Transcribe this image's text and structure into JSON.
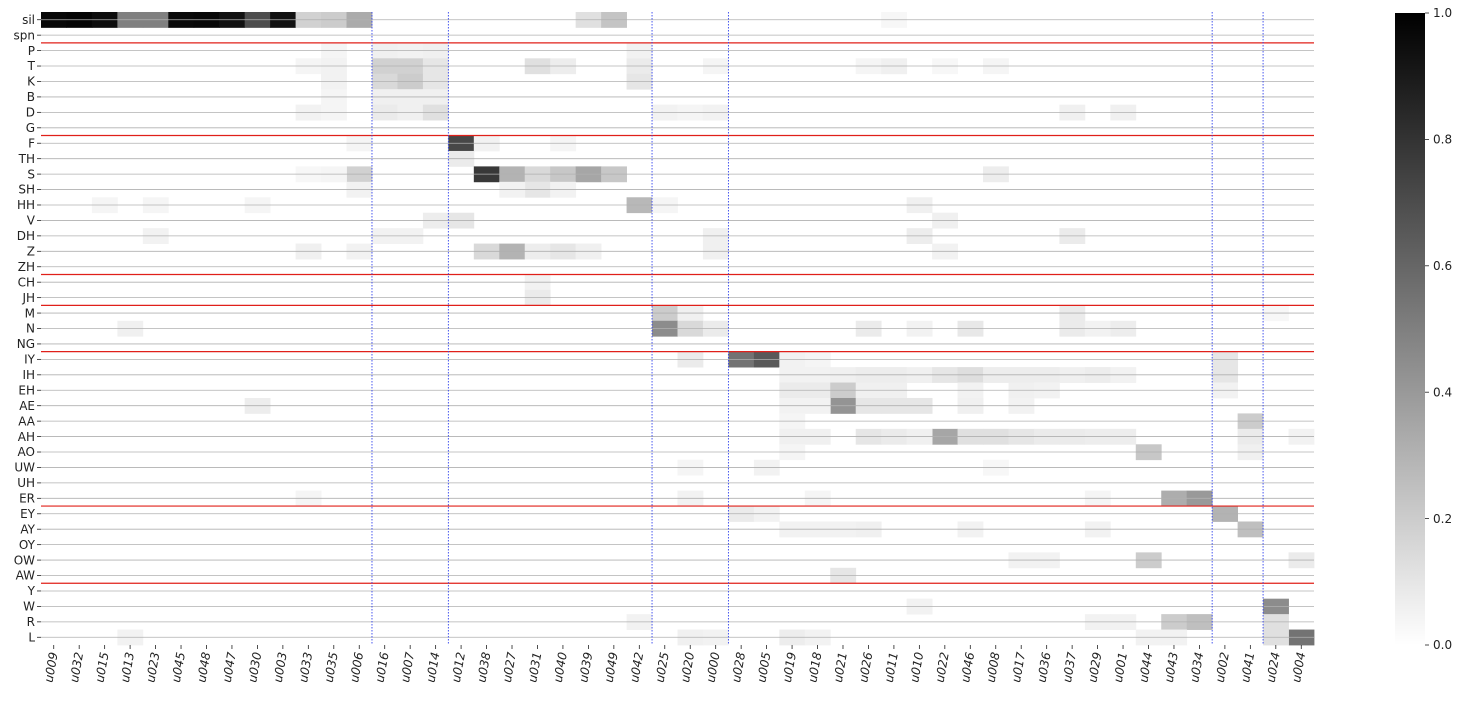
{
  "chart_data": {
    "type": "heatmap",
    "title": "",
    "xlabel": "",
    "ylabel": "",
    "color_scale": {
      "min": 0.0,
      "max": 1.0,
      "low_color": "#ffffff",
      "high_color": "#000000"
    },
    "colorbar_ticks": [
      "0.0",
      "0.2",
      "0.4",
      "0.6",
      "0.8",
      "1.0"
    ],
    "colorbar_tick_values": [
      0.0,
      0.2,
      0.4,
      0.6,
      0.8,
      1.0
    ],
    "rows": [
      "sil",
      "spn",
      "P",
      "T",
      "K",
      "B",
      "D",
      "G",
      "F",
      "TH",
      "S",
      "SH",
      "HH",
      "V",
      "DH",
      "Z",
      "ZH",
      "CH",
      "JH",
      "M",
      "N",
      "NG",
      "IY",
      "IH",
      "EH",
      "AE",
      "AA",
      "AH",
      "AO",
      "UW",
      "UH",
      "ER",
      "EY",
      "AY",
      "OY",
      "OW",
      "AW",
      "Y",
      "W",
      "R",
      "L"
    ],
    "columns": [
      "u009",
      "u032",
      "u015",
      "u013",
      "u023",
      "u045",
      "u048",
      "u047",
      "u030",
      "u003",
      "u033",
      "u035",
      "u006",
      "u016",
      "u007",
      "u014",
      "u012",
      "u038",
      "u027",
      "u031",
      "u040",
      "u039",
      "u049",
      "u042",
      "u025",
      "u020",
      "u000",
      "u028",
      "u005",
      "u019",
      "u018",
      "u021",
      "u026",
      "u011",
      "u010",
      "u022",
      "u046",
      "u008",
      "u017",
      "u036",
      "u037",
      "u029",
      "u001",
      "u044",
      "u043",
      "u034",
      "u002",
      "u041",
      "u024",
      "u004"
    ],
    "row_group_separators_after": [
      "spn",
      "G",
      "ZH",
      "JH",
      "NG",
      "ER",
      "AW"
    ],
    "column_group_separators_after": [
      "u006",
      "u014",
      "u042",
      "u000",
      "u034",
      "u041"
    ],
    "cells": [
      {
        "row": "sil",
        "col": "u009",
        "value": 0.97
      },
      {
        "row": "sil",
        "col": "u032",
        "value": 0.98
      },
      {
        "row": "sil",
        "col": "u015",
        "value": 0.95
      },
      {
        "row": "sil",
        "col": "u013",
        "value": 0.5
      },
      {
        "row": "sil",
        "col": "u023",
        "value": 0.5
      },
      {
        "row": "sil",
        "col": "u045",
        "value": 0.96
      },
      {
        "row": "sil",
        "col": "u048",
        "value": 0.97
      },
      {
        "row": "sil",
        "col": "u047",
        "value": 0.93
      },
      {
        "row": "sil",
        "col": "u030",
        "value": 0.7
      },
      {
        "row": "sil",
        "col": "u003",
        "value": 0.93
      },
      {
        "row": "sil",
        "col": "u033",
        "value": 0.18
      },
      {
        "row": "sil",
        "col": "u035",
        "value": 0.2
      },
      {
        "row": "sil",
        "col": "u006",
        "value": 0.33
      },
      {
        "row": "sil",
        "col": "u039",
        "value": 0.12
      },
      {
        "row": "sil",
        "col": "u049",
        "value": 0.23
      },
      {
        "row": "sil",
        "col": "u011",
        "value": 0.03
      },
      {
        "row": "P",
        "col": "u016",
        "value": 0.06
      },
      {
        "row": "P",
        "col": "u007",
        "value": 0.05
      },
      {
        "row": "P",
        "col": "u014",
        "value": 0.06
      },
      {
        "row": "P",
        "col": "u042",
        "value": 0.05
      },
      {
        "row": "P",
        "col": "u035",
        "value": 0.04
      },
      {
        "row": "T",
        "col": "u016",
        "value": 0.18
      },
      {
        "row": "T",
        "col": "u007",
        "value": 0.18
      },
      {
        "row": "T",
        "col": "u014",
        "value": 0.1
      },
      {
        "row": "T",
        "col": "u031",
        "value": 0.12
      },
      {
        "row": "T",
        "col": "u040",
        "value": 0.07
      },
      {
        "row": "T",
        "col": "u042",
        "value": 0.08
      },
      {
        "row": "T",
        "col": "u033",
        "value": 0.04
      },
      {
        "row": "T",
        "col": "u035",
        "value": 0.05
      },
      {
        "row": "T",
        "col": "u000",
        "value": 0.04
      },
      {
        "row": "T",
        "col": "u026",
        "value": 0.04
      },
      {
        "row": "T",
        "col": "u011",
        "value": 0.06
      },
      {
        "row": "T",
        "col": "u022",
        "value": 0.03
      },
      {
        "row": "T",
        "col": "u008",
        "value": 0.04
      },
      {
        "row": "K",
        "col": "u016",
        "value": 0.15
      },
      {
        "row": "K",
        "col": "u007",
        "value": 0.2
      },
      {
        "row": "K",
        "col": "u014",
        "value": 0.1
      },
      {
        "row": "K",
        "col": "u042",
        "value": 0.1
      },
      {
        "row": "K",
        "col": "u035",
        "value": 0.05
      },
      {
        "row": "B",
        "col": "u016",
        "value": 0.06
      },
      {
        "row": "B",
        "col": "u007",
        "value": 0.06
      },
      {
        "row": "B",
        "col": "u014",
        "value": 0.06
      },
      {
        "row": "B",
        "col": "u035",
        "value": 0.04
      },
      {
        "row": "D",
        "col": "u016",
        "value": 0.08
      },
      {
        "row": "D",
        "col": "u007",
        "value": 0.06
      },
      {
        "row": "D",
        "col": "u014",
        "value": 0.12
      },
      {
        "row": "D",
        "col": "u033",
        "value": 0.05
      },
      {
        "row": "D",
        "col": "u035",
        "value": 0.04
      },
      {
        "row": "D",
        "col": "u025",
        "value": 0.05
      },
      {
        "row": "D",
        "col": "u020",
        "value": 0.04
      },
      {
        "row": "D",
        "col": "u000",
        "value": 0.05
      },
      {
        "row": "D",
        "col": "u037",
        "value": 0.06
      },
      {
        "row": "D",
        "col": "u001",
        "value": 0.06
      },
      {
        "row": "F",
        "col": "u012",
        "value": 0.72
      },
      {
        "row": "F",
        "col": "u038",
        "value": 0.05
      },
      {
        "row": "F",
        "col": "u040",
        "value": 0.04
      },
      {
        "row": "F",
        "col": "u006",
        "value": 0.04
      },
      {
        "row": "TH",
        "col": "u012",
        "value": 0.08
      },
      {
        "row": "S",
        "col": "u038",
        "value": 0.78
      },
      {
        "row": "S",
        "col": "u027",
        "value": 0.3
      },
      {
        "row": "S",
        "col": "u031",
        "value": 0.15
      },
      {
        "row": "S",
        "col": "u040",
        "value": 0.22
      },
      {
        "row": "S",
        "col": "u039",
        "value": 0.35
      },
      {
        "row": "S",
        "col": "u049",
        "value": 0.22
      },
      {
        "row": "S",
        "col": "u006",
        "value": 0.18
      },
      {
        "row": "S",
        "col": "u008",
        "value": 0.07
      },
      {
        "row": "S",
        "col": "u033",
        "value": 0.03
      },
      {
        "row": "S",
        "col": "u035",
        "value": 0.04
      },
      {
        "row": "SH",
        "col": "u031",
        "value": 0.1
      },
      {
        "row": "SH",
        "col": "u027",
        "value": 0.05
      },
      {
        "row": "SH",
        "col": "u040",
        "value": 0.05
      },
      {
        "row": "SH",
        "col": "u006",
        "value": 0.05
      },
      {
        "row": "HH",
        "col": "u042",
        "value": 0.28
      },
      {
        "row": "HH",
        "col": "u015",
        "value": 0.04
      },
      {
        "row": "HH",
        "col": "u023",
        "value": 0.04
      },
      {
        "row": "HH",
        "col": "u030",
        "value": 0.04
      },
      {
        "row": "HH",
        "col": "u010",
        "value": 0.06
      },
      {
        "row": "HH",
        "col": "u025",
        "value": 0.04
      },
      {
        "row": "V",
        "col": "u012",
        "value": 0.1
      },
      {
        "row": "V",
        "col": "u014",
        "value": 0.07
      },
      {
        "row": "V",
        "col": "u022",
        "value": 0.06
      },
      {
        "row": "DH",
        "col": "u016",
        "value": 0.05
      },
      {
        "row": "DH",
        "col": "u007",
        "value": 0.05
      },
      {
        "row": "DH",
        "col": "u010",
        "value": 0.07
      },
      {
        "row": "DH",
        "col": "u037",
        "value": 0.08
      },
      {
        "row": "DH",
        "col": "u023",
        "value": 0.05
      },
      {
        "row": "DH",
        "col": "u000",
        "value": 0.06
      },
      {
        "row": "Z",
        "col": "u038",
        "value": 0.15
      },
      {
        "row": "Z",
        "col": "u027",
        "value": 0.3
      },
      {
        "row": "Z",
        "col": "u031",
        "value": 0.07
      },
      {
        "row": "Z",
        "col": "u040",
        "value": 0.1
      },
      {
        "row": "Z",
        "col": "u039",
        "value": 0.06
      },
      {
        "row": "Z",
        "col": "u033",
        "value": 0.06
      },
      {
        "row": "Z",
        "col": "u006",
        "value": 0.05
      },
      {
        "row": "Z",
        "col": "u000",
        "value": 0.06
      },
      {
        "row": "Z",
        "col": "u022",
        "value": 0.05
      },
      {
        "row": "CH",
        "col": "u031",
        "value": 0.05
      },
      {
        "row": "JH",
        "col": "u031",
        "value": 0.08
      },
      {
        "row": "M",
        "col": "u025",
        "value": 0.2
      },
      {
        "row": "M",
        "col": "u020",
        "value": 0.06
      },
      {
        "row": "M",
        "col": "u037",
        "value": 0.08
      },
      {
        "row": "M",
        "col": "u024",
        "value": 0.03
      },
      {
        "row": "N",
        "col": "u025",
        "value": 0.45
      },
      {
        "row": "N",
        "col": "u020",
        "value": 0.15
      },
      {
        "row": "N",
        "col": "u000",
        "value": 0.08
      },
      {
        "row": "N",
        "col": "u013",
        "value": 0.06
      },
      {
        "row": "N",
        "col": "u026",
        "value": 0.08
      },
      {
        "row": "N",
        "col": "u046",
        "value": 0.09
      },
      {
        "row": "N",
        "col": "u037",
        "value": 0.08
      },
      {
        "row": "N",
        "col": "u001",
        "value": 0.07
      },
      {
        "row": "N",
        "col": "u010",
        "value": 0.05
      },
      {
        "row": "N",
        "col": "u029",
        "value": 0.05
      },
      {
        "row": "IY",
        "col": "u028",
        "value": 0.55
      },
      {
        "row": "IY",
        "col": "u005",
        "value": 0.65
      },
      {
        "row": "IY",
        "col": "u020",
        "value": 0.08
      },
      {
        "row": "IY",
        "col": "u002",
        "value": 0.1
      },
      {
        "row": "IY",
        "col": "u019",
        "value": 0.05
      },
      {
        "row": "IY",
        "col": "u018",
        "value": 0.04
      },
      {
        "row": "IH",
        "col": "u019",
        "value": 0.05
      },
      {
        "row": "IH",
        "col": "u018",
        "value": 0.05
      },
      {
        "row": "IH",
        "col": "u021",
        "value": 0.06
      },
      {
        "row": "IH",
        "col": "u026",
        "value": 0.07
      },
      {
        "row": "IH",
        "col": "u011",
        "value": 0.07
      },
      {
        "row": "IH",
        "col": "u010",
        "value": 0.06
      },
      {
        "row": "IH",
        "col": "u022",
        "value": 0.1
      },
      {
        "row": "IH",
        "col": "u046",
        "value": 0.13
      },
      {
        "row": "IH",
        "col": "u008",
        "value": 0.07
      },
      {
        "row": "IH",
        "col": "u017",
        "value": 0.07
      },
      {
        "row": "IH",
        "col": "u036",
        "value": 0.07
      },
      {
        "row": "IH",
        "col": "u037",
        "value": 0.06
      },
      {
        "row": "IH",
        "col": "u029",
        "value": 0.07
      },
      {
        "row": "IH",
        "col": "u001",
        "value": 0.05
      },
      {
        "row": "IH",
        "col": "u002",
        "value": 0.1
      },
      {
        "row": "EH",
        "col": "u019",
        "value": 0.08
      },
      {
        "row": "EH",
        "col": "u018",
        "value": 0.08
      },
      {
        "row": "EH",
        "col": "u021",
        "value": 0.2
      },
      {
        "row": "EH",
        "col": "u026",
        "value": 0.06
      },
      {
        "row": "EH",
        "col": "u011",
        "value": 0.06
      },
      {
        "row": "EH",
        "col": "u046",
        "value": 0.05
      },
      {
        "row": "EH",
        "col": "u017",
        "value": 0.06
      },
      {
        "row": "EH",
        "col": "u036",
        "value": 0.05
      },
      {
        "row": "EH",
        "col": "u002",
        "value": 0.05
      },
      {
        "row": "AE",
        "col": "u021",
        "value": 0.42
      },
      {
        "row": "AE",
        "col": "u026",
        "value": 0.1
      },
      {
        "row": "AE",
        "col": "u011",
        "value": 0.1
      },
      {
        "row": "AE",
        "col": "u010",
        "value": 0.1
      },
      {
        "row": "AE",
        "col": "u030",
        "value": 0.07
      },
      {
        "row": "AE",
        "col": "u019",
        "value": 0.05
      },
      {
        "row": "AE",
        "col": "u018",
        "value": 0.05
      },
      {
        "row": "AE",
        "col": "u046",
        "value": 0.06
      },
      {
        "row": "AE",
        "col": "u017",
        "value": 0.05
      },
      {
        "row": "AA",
        "col": "u041",
        "value": 0.2
      },
      {
        "row": "AA",
        "col": "u019",
        "value": 0.04
      },
      {
        "row": "AH",
        "col": "u022",
        "value": 0.35
      },
      {
        "row": "AH",
        "col": "u046",
        "value": 0.12
      },
      {
        "row": "AH",
        "col": "u008",
        "value": 0.12
      },
      {
        "row": "AH",
        "col": "u017",
        "value": 0.1
      },
      {
        "row": "AH",
        "col": "u036",
        "value": 0.08
      },
      {
        "row": "AH",
        "col": "u037",
        "value": 0.08
      },
      {
        "row": "AH",
        "col": "u029",
        "value": 0.07
      },
      {
        "row": "AH",
        "col": "u001",
        "value": 0.07
      },
      {
        "row": "AH",
        "col": "u026",
        "value": 0.1
      },
      {
        "row": "AH",
        "col": "u011",
        "value": 0.08
      },
      {
        "row": "AH",
        "col": "u010",
        "value": 0.06
      },
      {
        "row": "AH",
        "col": "u019",
        "value": 0.06
      },
      {
        "row": "AH",
        "col": "u018",
        "value": 0.06
      },
      {
        "row": "AH",
        "col": "u041",
        "value": 0.08
      },
      {
        "row": "AH",
        "col": "u004",
        "value": 0.05
      },
      {
        "row": "AO",
        "col": "u044",
        "value": 0.22
      },
      {
        "row": "AO",
        "col": "u041",
        "value": 0.06
      },
      {
        "row": "AO",
        "col": "u019",
        "value": 0.04
      },
      {
        "row": "UW",
        "col": "u005",
        "value": 0.05
      },
      {
        "row": "UW",
        "col": "u020",
        "value": 0.04
      },
      {
        "row": "UW",
        "col": "u008",
        "value": 0.03
      },
      {
        "row": "ER",
        "col": "u043",
        "value": 0.32
      },
      {
        "row": "ER",
        "col": "u034",
        "value": 0.4
      },
      {
        "row": "ER",
        "col": "u020",
        "value": 0.05
      },
      {
        "row": "ER",
        "col": "u033",
        "value": 0.04
      },
      {
        "row": "ER",
        "col": "u018",
        "value": 0.04
      },
      {
        "row": "ER",
        "col": "u029",
        "value": 0.04
      },
      {
        "row": "EY",
        "col": "u002",
        "value": 0.3
      },
      {
        "row": "EY",
        "col": "u028",
        "value": 0.08
      },
      {
        "row": "EY",
        "col": "u005",
        "value": 0.05
      },
      {
        "row": "AY",
        "col": "u041",
        "value": 0.25
      },
      {
        "row": "AY",
        "col": "u019",
        "value": 0.05
      },
      {
        "row": "AY",
        "col": "u018",
        "value": 0.05
      },
      {
        "row": "AY",
        "col": "u021",
        "value": 0.05
      },
      {
        "row": "AY",
        "col": "u026",
        "value": 0.06
      },
      {
        "row": "AY",
        "col": "u046",
        "value": 0.05
      },
      {
        "row": "AY",
        "col": "u029",
        "value": 0.05
      },
      {
        "row": "OW",
        "col": "u044",
        "value": 0.2
      },
      {
        "row": "OW",
        "col": "u004",
        "value": 0.08
      },
      {
        "row": "OW",
        "col": "u017",
        "value": 0.05
      },
      {
        "row": "OW",
        "col": "u036",
        "value": 0.05
      },
      {
        "row": "AW",
        "col": "u021",
        "value": 0.1
      },
      {
        "row": "W",
        "col": "u024",
        "value": 0.45
      },
      {
        "row": "W",
        "col": "u010",
        "value": 0.05
      },
      {
        "row": "R",
        "col": "u043",
        "value": 0.2
      },
      {
        "row": "R",
        "col": "u034",
        "value": 0.25
      },
      {
        "row": "R",
        "col": "u024",
        "value": 0.12
      },
      {
        "row": "R",
        "col": "u042",
        "value": 0.05
      },
      {
        "row": "R",
        "col": "u029",
        "value": 0.05
      },
      {
        "row": "R",
        "col": "u001",
        "value": 0.05
      },
      {
        "row": "L",
        "col": "u004",
        "value": 0.55
      },
      {
        "row": "L",
        "col": "u024",
        "value": 0.12
      },
      {
        "row": "L",
        "col": "u019",
        "value": 0.07
      },
      {
        "row": "L",
        "col": "u018",
        "value": 0.05
      },
      {
        "row": "L",
        "col": "u020",
        "value": 0.06
      },
      {
        "row": "L",
        "col": "u013",
        "value": 0.05
      },
      {
        "row": "L",
        "col": "u044",
        "value": 0.05
      },
      {
        "row": "L",
        "col": "u043",
        "value": 0.05
      },
      {
        "row": "L",
        "col": "u000",
        "value": 0.05
      }
    ]
  }
}
